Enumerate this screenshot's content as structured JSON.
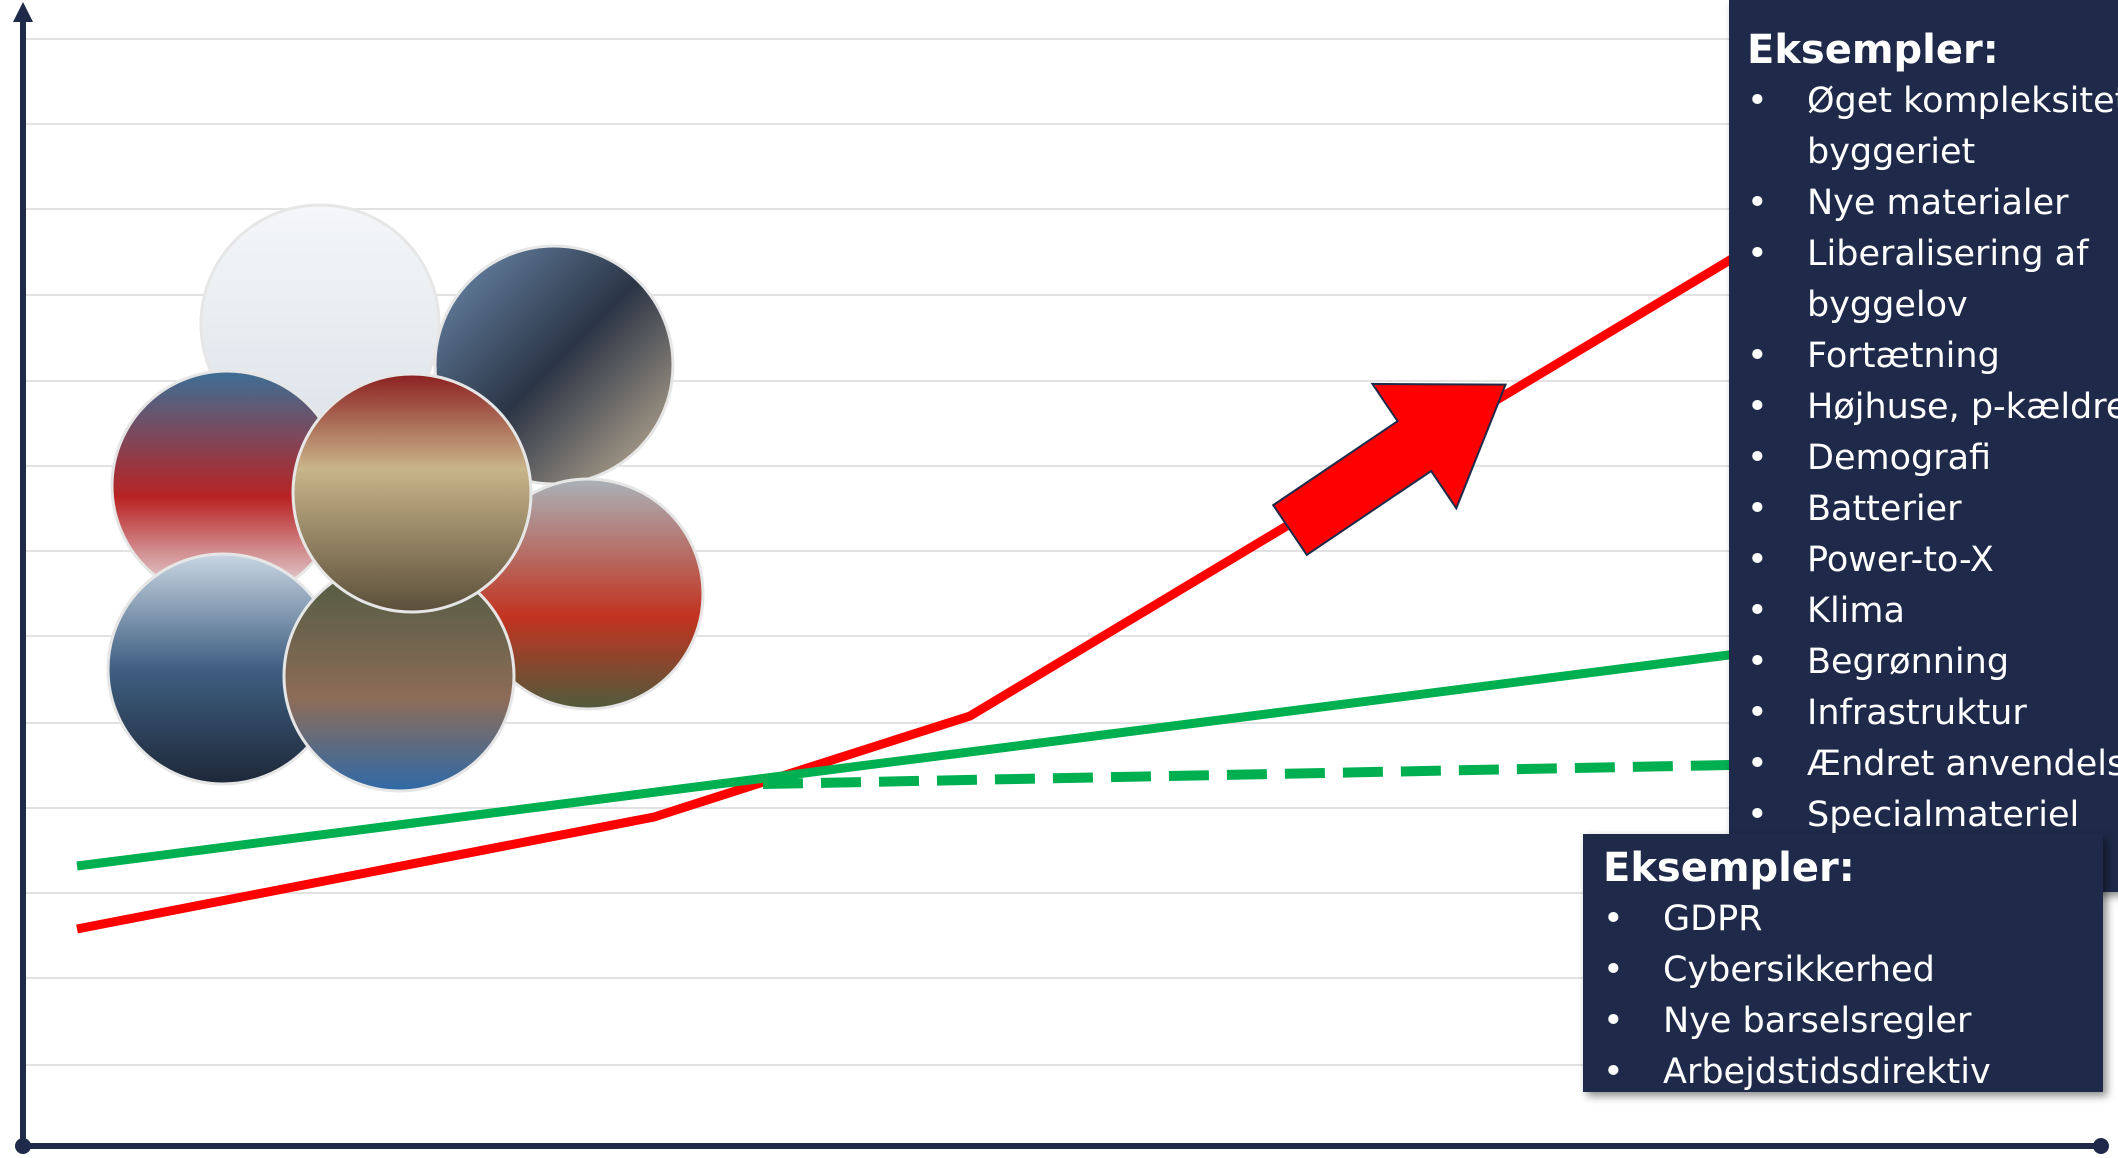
{
  "boxes": [
    {
      "title": "Eksempler:",
      "items": [
        "Øget kompleksitet i byggeriet",
        "Nye materialer",
        "Liberalisering af byggelov",
        "Fortætning",
        "Højhuse, p-kældre",
        "Demografi",
        "Batterier",
        "Power-to-X",
        "Klima",
        "Begrønning",
        "Infrastruktur",
        "Ændret anvendelse",
        "Specialmateriel"
      ]
    },
    {
      "title": "Eksempler:",
      "items": [
        "GDPR",
        "Cybersikkerhed",
        "Nye barselsregler",
        "Arbejdstidsdirektiv"
      ]
    }
  ]
}
